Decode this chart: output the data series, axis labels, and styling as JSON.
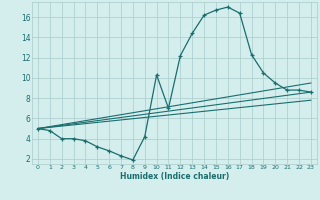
{
  "xlabel": "Humidex (Indice chaleur)",
  "background_color": "#d4eeee",
  "grid_color": "#aacccc",
  "line_color": "#1a6e6e",
  "xlim": [
    -0.5,
    23.5
  ],
  "ylim": [
    1.5,
    17.5
  ],
  "xticks": [
    0,
    1,
    2,
    3,
    4,
    5,
    6,
    7,
    8,
    9,
    10,
    11,
    12,
    13,
    14,
    15,
    16,
    17,
    18,
    19,
    20,
    21,
    22,
    23
  ],
  "yticks": [
    2,
    4,
    6,
    8,
    10,
    12,
    14,
    16
  ],
  "line1_x": [
    0,
    1,
    2,
    3,
    4,
    5,
    6,
    7,
    8,
    9,
    10,
    11,
    12,
    13,
    14,
    15,
    16,
    17,
    18,
    19,
    20,
    21,
    22,
    23
  ],
  "line1_y": [
    5.0,
    4.8,
    4.0,
    4.0,
    3.8,
    3.2,
    2.8,
    2.3,
    1.9,
    4.2,
    10.3,
    7.0,
    12.2,
    14.4,
    16.2,
    16.7,
    17.0,
    16.4,
    12.3,
    10.5,
    9.5,
    8.8,
    8.8,
    8.6
  ],
  "line2_x": [
    0,
    23
  ],
  "line2_y": [
    5.0,
    8.6
  ],
  "line3_x": [
    0,
    23
  ],
  "line3_y": [
    5.0,
    7.8
  ],
  "line4_x": [
    0,
    23
  ],
  "line4_y": [
    5.0,
    9.5
  ]
}
